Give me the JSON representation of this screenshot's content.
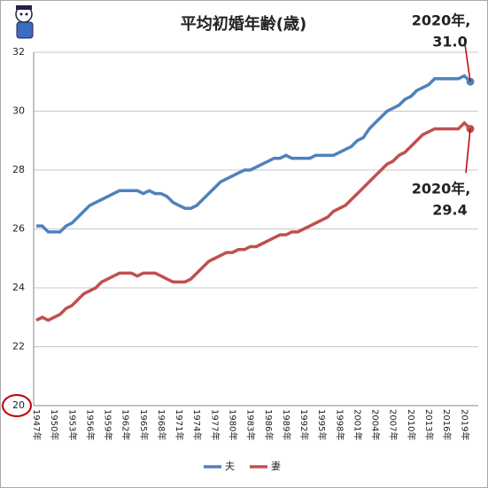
{
  "chart_data": {
    "type": "line",
    "title": "平均初婚年齢(歳)",
    "categories": [
      "1947年",
      null,
      null,
      "1950年",
      null,
      null,
      "1953年",
      null,
      null,
      "1956年",
      null,
      null,
      "1959年",
      null,
      null,
      "1962年",
      null,
      null,
      "1965年",
      null,
      null,
      "1968年",
      null,
      null,
      "1971年",
      null,
      null,
      "1974年",
      null,
      null,
      "1977年",
      null,
      null,
      "1980年",
      null,
      null,
      "1983年",
      null,
      null,
      "1986年",
      null,
      null,
      "1989年",
      null,
      null,
      "1992年",
      null,
      null,
      "1995年",
      null,
      null,
      "1998年",
      null,
      null,
      "2001年",
      null,
      null,
      "2004年",
      null,
      null,
      "2007年",
      null,
      null,
      "2010年",
      null,
      null,
      "2013年",
      null,
      null,
      "2016年",
      null,
      null,
      "2019年",
      null
    ],
    "series": [
      {
        "name": "夫",
        "color": "#4f81bd",
        "values": [
          26.1,
          26.1,
          25.9,
          25.9,
          25.9,
          26.1,
          26.2,
          26.4,
          26.6,
          26.8,
          26.9,
          27.0,
          27.1,
          27.2,
          27.3,
          27.3,
          27.3,
          27.3,
          27.2,
          27.3,
          27.2,
          27.2,
          27.1,
          26.9,
          26.8,
          26.7,
          26.7,
          26.8,
          27.0,
          27.2,
          27.4,
          27.6,
          27.7,
          27.8,
          27.9,
          28.0,
          28.0,
          28.1,
          28.2,
          28.3,
          28.4,
          28.4,
          28.5,
          28.4,
          28.4,
          28.4,
          28.4,
          28.5,
          28.5,
          28.5,
          28.5,
          28.6,
          28.7,
          28.8,
          29.0,
          29.1,
          29.4,
          29.6,
          29.8,
          30.0,
          30.1,
          30.2,
          30.4,
          30.5,
          30.7,
          30.8,
          30.9,
          31.1,
          31.1,
          31.1,
          31.1,
          31.1,
          31.2,
          31.0
        ]
      },
      {
        "name": "妻",
        "color": "#c0504d",
        "values": [
          22.9,
          23.0,
          22.9,
          23.0,
          23.1,
          23.3,
          23.4,
          23.6,
          23.8,
          23.9,
          24.0,
          24.2,
          24.3,
          24.4,
          24.5,
          24.5,
          24.5,
          24.4,
          24.5,
          24.5,
          24.5,
          24.4,
          24.3,
          24.2,
          24.2,
          24.2,
          24.3,
          24.5,
          24.7,
          24.9,
          25.0,
          25.1,
          25.2,
          25.2,
          25.3,
          25.3,
          25.4,
          25.4,
          25.5,
          25.6,
          25.7,
          25.8,
          25.8,
          25.9,
          25.9,
          26.0,
          26.1,
          26.2,
          26.3,
          26.4,
          26.6,
          26.7,
          26.8,
          27.0,
          27.2,
          27.4,
          27.6,
          27.8,
          28.0,
          28.2,
          28.3,
          28.5,
          28.6,
          28.8,
          29.0,
          29.2,
          29.3,
          29.4,
          29.4,
          29.4,
          29.4,
          29.4,
          29.6,
          29.4
        ]
      }
    ],
    "ylim": [
      20,
      32
    ],
    "yticks": [
      20,
      22,
      24,
      26,
      28,
      30,
      32
    ],
    "grid": true,
    "legend": "bottom",
    "annotations": [
      {
        "lines": [
          "2020年,",
          "31.0"
        ],
        "series": 0
      },
      {
        "lines": [
          "2020年,",
          "29.4"
        ],
        "series": 1
      }
    ]
  }
}
